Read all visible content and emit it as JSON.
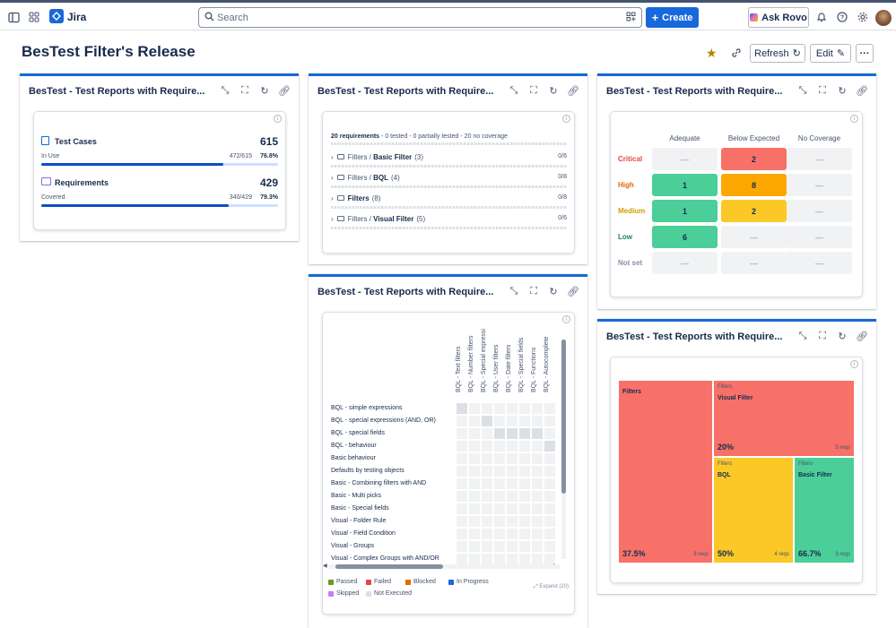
{
  "app": {
    "name": "Jira",
    "search_placeholder": "Search",
    "create_label": "Create",
    "rovo_label": "Ask Rovo"
  },
  "page": {
    "title": "BesTest Filter's Release",
    "refresh_label": "Refresh",
    "edit_label": "Edit"
  },
  "colors": {
    "accent": "#1868db",
    "failed": "#f87168",
    "high": "#fca700",
    "medium": "#fbc828",
    "passed": "#4bce97"
  },
  "gadget_title": "BesTest - Test Reports with Require...",
  "stats": {
    "test_cases": {
      "label": "Test Cases",
      "value": "615",
      "sub": "In Use",
      "frac": "472/615",
      "pct": "76.8%",
      "fill": 0.768
    },
    "requirements": {
      "label": "Requirements",
      "value": "429",
      "sub": "Covered",
      "frac": "340/429",
      "pct": "79.3%",
      "fill": 0.793
    }
  },
  "coverage": {
    "summary_count": "20 requirements",
    "summary_rest": " - 0 tested - 0 partially tested - 20 no coverage",
    "rows": [
      {
        "prefix": "Filters / ",
        "name": "Basic Filter",
        "count": "(3)",
        "ratio": "0/6"
      },
      {
        "prefix": "Filters / ",
        "name": "BQL",
        "count": "(4)",
        "ratio": "0/8"
      },
      {
        "prefix": "",
        "name": "Filters",
        "count": "(8)",
        "ratio": "0/8"
      },
      {
        "prefix": "Filters / ",
        "name": "Visual Filter",
        "count": "(5)",
        "ratio": "0/6"
      }
    ]
  },
  "risk": {
    "columns": [
      "Adequate",
      "Below Expected",
      "No Coverage"
    ],
    "rows": [
      {
        "label": "Critical",
        "color": "#e2483d",
        "cells": [
          "—",
          "2",
          "—"
        ]
      },
      {
        "label": "High",
        "color": "#e06c00",
        "cells": [
          "1",
          "8",
          "—"
        ]
      },
      {
        "label": "Medium",
        "color": "#d19d00",
        "cells": [
          "1",
          "2",
          "—"
        ]
      },
      {
        "label": "Low",
        "color": "#1f845a",
        "cells": [
          "6",
          "—",
          "—"
        ]
      },
      {
        "label": "Not set",
        "color": "#8590a2",
        "cells": [
          "—",
          "—",
          "—"
        ]
      }
    ]
  },
  "matrix": {
    "columns": [
      "BQL - Text filters",
      "BQL - Number filters",
      "BQL - Special expressi",
      "BQL - User filters",
      "BQL - Date filters",
      "BQL - Special fields",
      "BQL - Functions",
      "BQL - Autocomplete"
    ],
    "rows": [
      "BQL - simple expressions",
      "BQL - special expressions (AND, OR)",
      "BQL - special fields",
      "BQL - behaviour",
      "Basic behaviour",
      "Defaults by testing objects",
      "Basic - Combining filters with AND",
      "Basic - Multi picks",
      "Basic - Special fields",
      "Visual - Folder Rule",
      "Visual - Field Condition",
      "Visual - Groups",
      "Visual - Complex Groups with AND/OR"
    ],
    "legend": [
      {
        "label": "Passed",
        "color": "#6a9a23"
      },
      {
        "label": "Failed",
        "color": "#e2483d"
      },
      {
        "label": "Blocked",
        "color": "#e06c00"
      },
      {
        "label": "In Progress",
        "color": "#1868db"
      },
      {
        "label": "Skipped",
        "color": "#c97cf4"
      },
      {
        "label": "Not Executed",
        "color": "#dcdfe4"
      }
    ],
    "expand_label": "Expand (20)"
  },
  "treemap": [
    {
      "parent": "",
      "name": "Filters",
      "pct": "37.5%",
      "reqs": "8 reqs",
      "color": "#f87168"
    },
    {
      "parent": "Filters",
      "name": "Visual Filter",
      "pct": "20%",
      "reqs": "5 reqs",
      "color": "#f87168"
    },
    {
      "parent": "Filters",
      "name": "BQL",
      "pct": "50%",
      "reqs": "4 reqs",
      "color": "#fbc828"
    },
    {
      "parent": "Filters",
      "name": "Basic Filter",
      "pct": "66.7%",
      "reqs": "3 reqs",
      "color": "#4bce97"
    }
  ]
}
